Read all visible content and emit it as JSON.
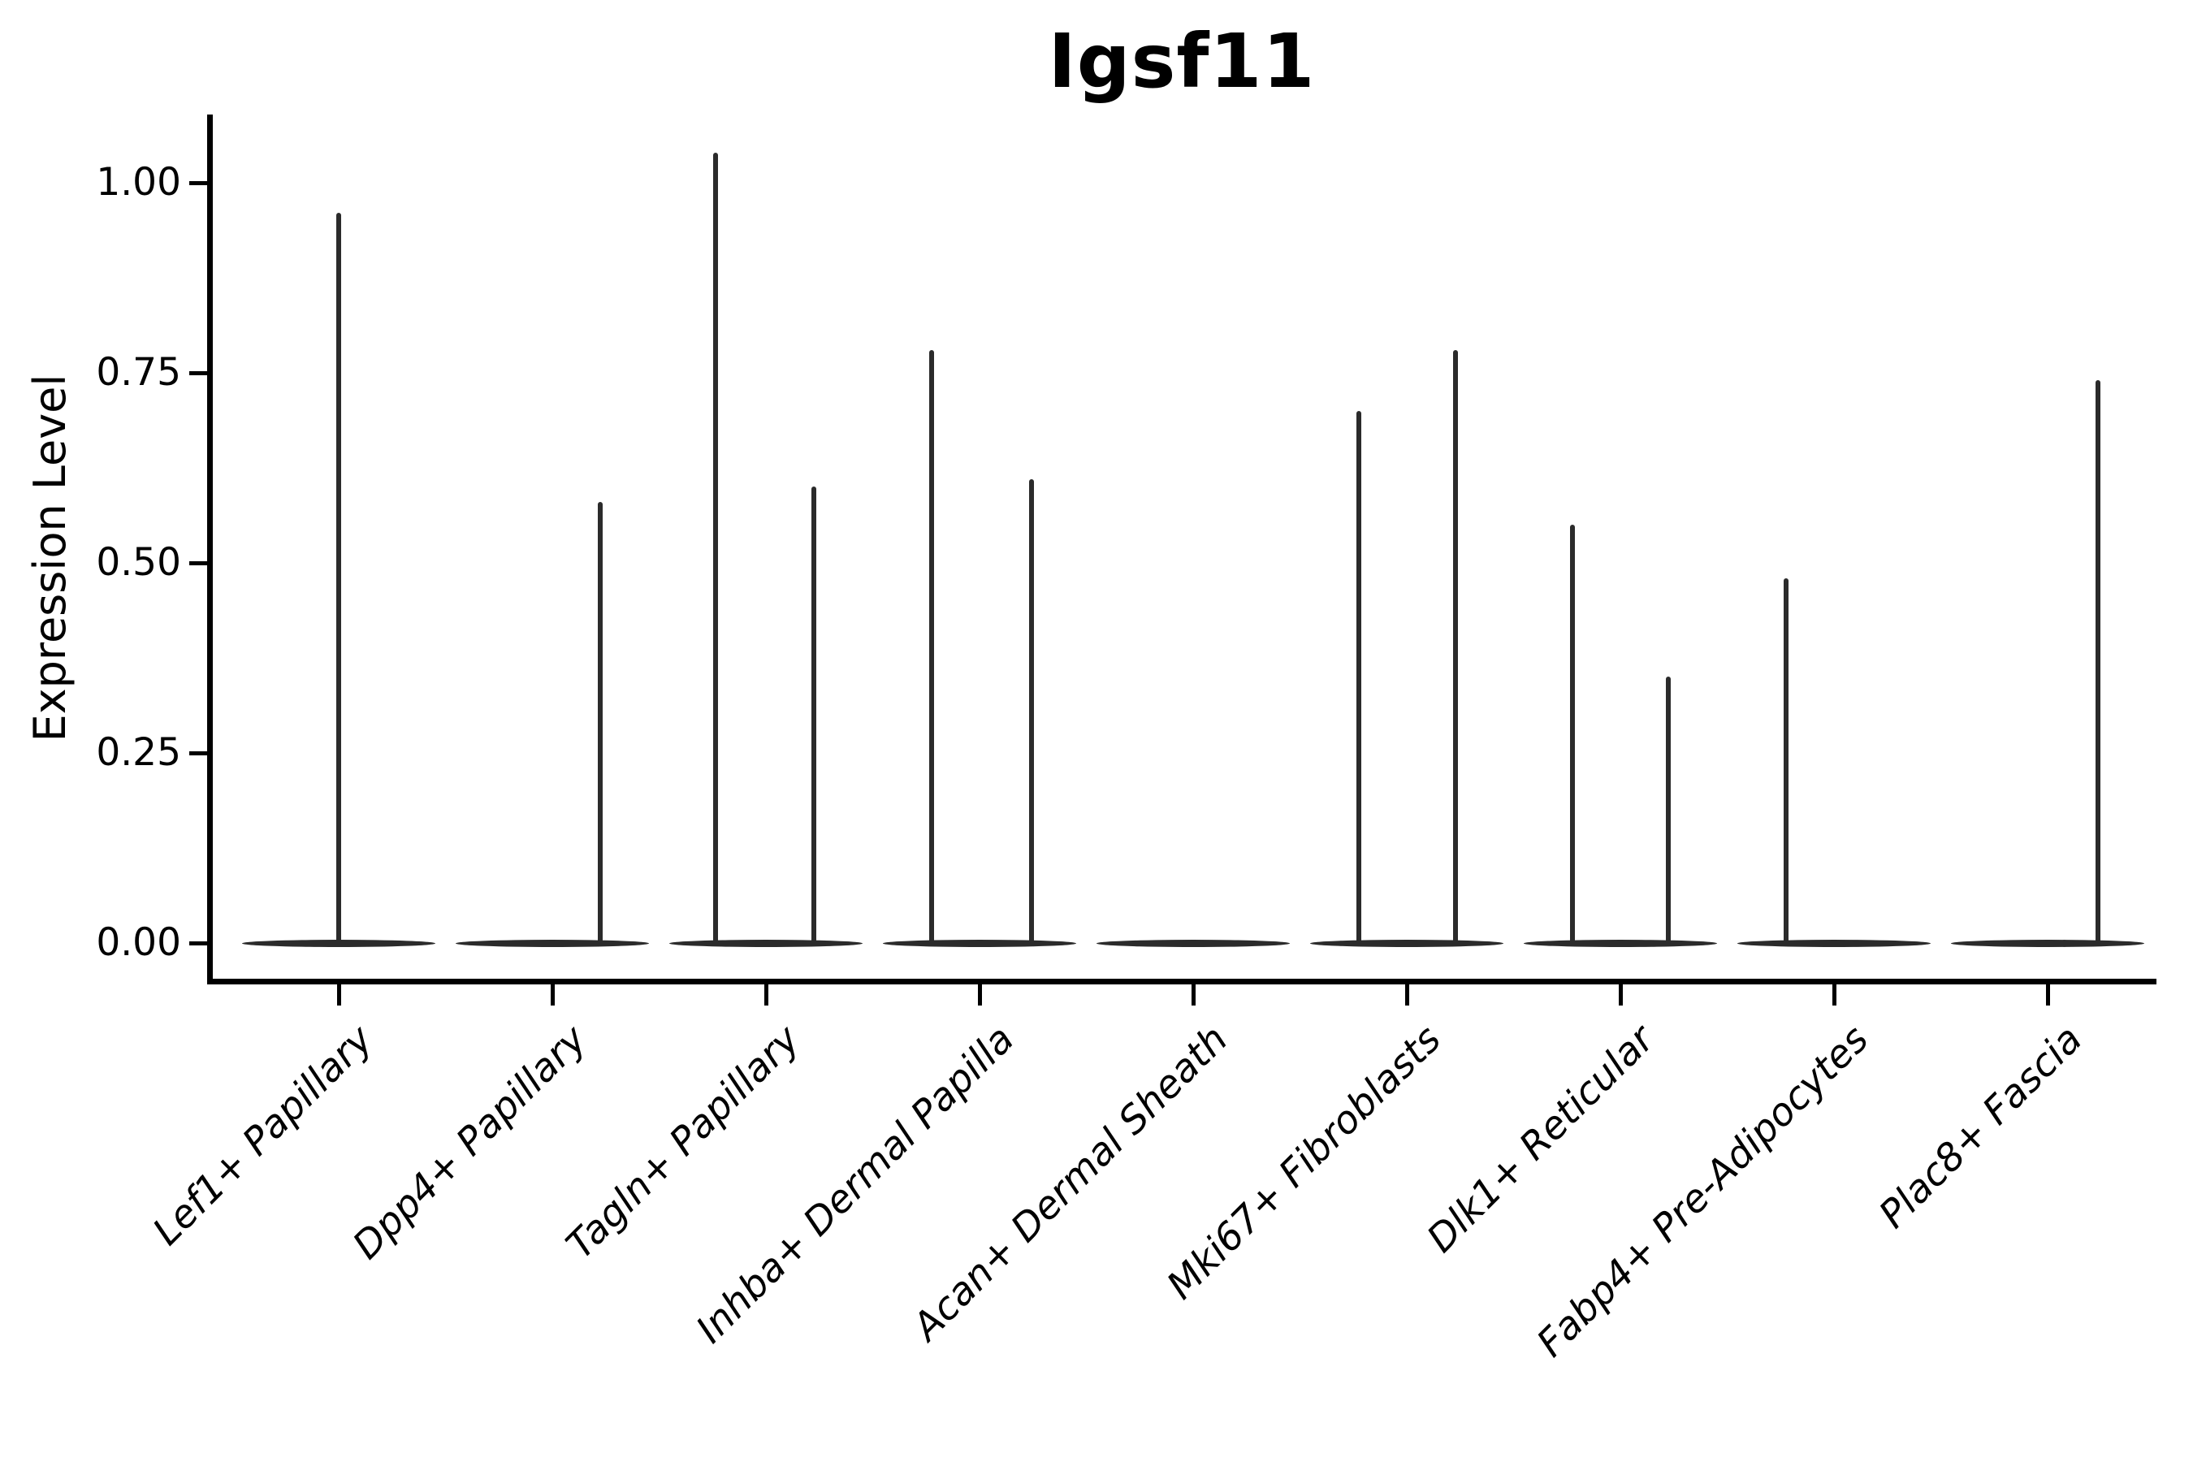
{
  "figure": {
    "title": "Igsf11",
    "ylabel": "Expression Level"
  },
  "chart_data": {
    "type": "violin",
    "title": "Igsf11",
    "xlabel": "",
    "ylabel": "Expression Level",
    "ylim": [
      -0.052,
      1.092
    ],
    "ytick_labels": [
      "0.00",
      "0.25",
      "0.50",
      "0.75",
      "1.00"
    ],
    "ytick_values": [
      0.0,
      0.25,
      0.5,
      0.75,
      1.0
    ],
    "grid": false,
    "legend_position": "none",
    "violin_color": "#2b2b2b",
    "axis_color": "#000000",
    "categories": [
      "Lef1+ Papillary",
      "Dpp4+ Papillary",
      "Tagln+ Papillary",
      "Inhba+ Dermal Papilla",
      "Acan+ Dermal Sheath",
      "Mki67+ Fibroblasts",
      "Dlk1+ Reticular",
      "Fabp4+ Pre-Adipocytes",
      "Plac8+ Fascia"
    ],
    "violins": [
      {
        "category": "Lef1+ Papillary",
        "zero_base": true,
        "spikes": [
          {
            "x_offset": 0.0,
            "value": 0.96
          }
        ]
      },
      {
        "category": "Dpp4+ Papillary",
        "zero_base": true,
        "spikes": [
          {
            "x_offset": 0.225,
            "value": 0.58
          }
        ]
      },
      {
        "category": "Tagln+ Papillary",
        "zero_base": true,
        "spikes": [
          {
            "x_offset": -0.235,
            "value": 1.04
          },
          {
            "x_offset": 0.225,
            "value": 0.6
          }
        ]
      },
      {
        "category": "Inhba+ Dermal Papilla",
        "zero_base": true,
        "spikes": [
          {
            "x_offset": -0.225,
            "value": 0.78
          },
          {
            "x_offset": 0.245,
            "value": 0.61
          }
        ]
      },
      {
        "category": "Acan+ Dermal Sheath",
        "zero_base": true,
        "spikes": []
      },
      {
        "category": "Mki67+ Fibroblasts",
        "zero_base": true,
        "spikes": [
          {
            "x_offset": -0.225,
            "value": 0.7
          },
          {
            "x_offset": 0.23,
            "value": 0.78
          }
        ]
      },
      {
        "category": "Dlk1+ Reticular",
        "zero_base": true,
        "spikes": [
          {
            "x_offset": -0.225,
            "value": 0.55
          },
          {
            "x_offset": 0.225,
            "value": 0.35
          }
        ]
      },
      {
        "category": "Fabp4+ Pre-Adipocytes",
        "zero_base": true,
        "spikes": [
          {
            "x_offset": -0.225,
            "value": 0.48
          }
        ]
      },
      {
        "category": "Plac8+ Fascia",
        "zero_base": true,
        "spikes": [
          {
            "x_offset": 0.235,
            "value": 0.74
          }
        ]
      }
    ]
  }
}
